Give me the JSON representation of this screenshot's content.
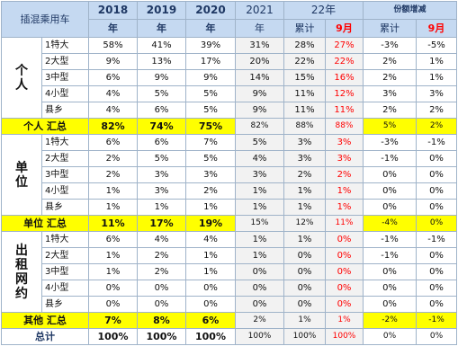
{
  "header": {
    "title": "插混乘用车",
    "y2018": "2018",
    "y2019": "2019",
    "y2020": "2020",
    "y2021": "2021",
    "y22": "22年",
    "share_change": "份额增减",
    "year_unit": "年",
    "cumulative": "累计",
    "month9": "9月"
  },
  "groups": [
    {
      "label": "个\n人",
      "rows": [
        {
          "label": "1特大",
          "v2018": "58%",
          "v2019": "41%",
          "v2020": "39%",
          "v2021": "31%",
          "cum22": "28%",
          "sep22": "27%",
          "dcum": "-3%",
          "dsep": "-5%"
        },
        {
          "label": "2大型",
          "v2018": "9%",
          "v2019": "13%",
          "v2020": "17%",
          "v2021": "20%",
          "cum22": "22%",
          "sep22": "22%",
          "dcum": "2%",
          "dsep": "1%"
        },
        {
          "label": "3中型",
          "v2018": "6%",
          "v2019": "9%",
          "v2020": "9%",
          "v2021": "14%",
          "cum22": "15%",
          "sep22": "16%",
          "dcum": "2%",
          "dsep": "1%"
        },
        {
          "label": "4小型",
          "v2018": "4%",
          "v2019": "5%",
          "v2020": "5%",
          "v2021": "9%",
          "cum22": "11%",
          "sep22": "12%",
          "dcum": "3%",
          "dsep": "3%"
        },
        {
          "label": "县乡",
          "v2018": "4%",
          "v2019": "6%",
          "v2020": "5%",
          "v2021": "9%",
          "cum22": "11%",
          "sep22": "11%",
          "dcum": "2%",
          "dsep": "2%"
        }
      ],
      "summary": {
        "label": "个人 汇总",
        "v2018": "82%",
        "v2019": "74%",
        "v2020": "75%",
        "v2021": "82%",
        "cum22": "88%",
        "sep22": "88%",
        "dcum": "5%",
        "dsep": "2%"
      }
    },
    {
      "label": "单\n位",
      "rows": [
        {
          "label": "1特大",
          "v2018": "6%",
          "v2019": "6%",
          "v2020": "7%",
          "v2021": "5%",
          "cum22": "3%",
          "sep22": "3%",
          "dcum": "-3%",
          "dsep": "-1%"
        },
        {
          "label": "2大型",
          "v2018": "2%",
          "v2019": "5%",
          "v2020": "5%",
          "v2021": "4%",
          "cum22": "3%",
          "sep22": "3%",
          "dcum": "-1%",
          "dsep": "0%"
        },
        {
          "label": "3中型",
          "v2018": "2%",
          "v2019": "3%",
          "v2020": "3%",
          "v2021": "3%",
          "cum22": "2%",
          "sep22": "2%",
          "dcum": "0%",
          "dsep": "0%"
        },
        {
          "label": "4小型",
          "v2018": "1%",
          "v2019": "3%",
          "v2020": "2%",
          "v2021": "1%",
          "cum22": "1%",
          "sep22": "1%",
          "dcum": "0%",
          "dsep": "0%"
        },
        {
          "label": "县乡",
          "v2018": "1%",
          "v2019": "1%",
          "v2020": "1%",
          "v2021": "1%",
          "cum22": "1%",
          "sep22": "1%",
          "dcum": "0%",
          "dsep": "0%"
        }
      ],
      "summary": {
        "label": "单位 汇总",
        "v2018": "11%",
        "v2019": "17%",
        "v2020": "19%",
        "v2021": "15%",
        "cum22": "12%",
        "sep22": "11%",
        "dcum": "-4%",
        "dsep": "0%"
      }
    },
    {
      "label": "出\n租\n网\n约",
      "rows": [
        {
          "label": "1特大",
          "v2018": "6%",
          "v2019": "4%",
          "v2020": "4%",
          "v2021": "1%",
          "cum22": "1%",
          "sep22": "0%",
          "dcum": "-1%",
          "dsep": "-1%"
        },
        {
          "label": "2大型",
          "v2018": "1%",
          "v2019": "2%",
          "v2020": "1%",
          "v2021": "1%",
          "cum22": "0%",
          "sep22": "0%",
          "dcum": "-1%",
          "dsep": "0%"
        },
        {
          "label": "3中型",
          "v2018": "1%",
          "v2019": "2%",
          "v2020": "1%",
          "v2021": "0%",
          "cum22": "0%",
          "sep22": "0%",
          "dcum": "0%",
          "dsep": "0%"
        },
        {
          "label": "4小型",
          "v2018": "0%",
          "v2019": "0%",
          "v2020": "0%",
          "v2021": "0%",
          "cum22": "0%",
          "sep22": "0%",
          "dcum": "0%",
          "dsep": "0%"
        },
        {
          "label": "县乡",
          "v2018": "0%",
          "v2019": "0%",
          "v2020": "0%",
          "v2021": "0%",
          "cum22": "0%",
          "sep22": "0%",
          "dcum": "0%",
          "dsep": "0%"
        }
      ],
      "summary": {
        "label": "其他 汇总",
        "v2018": "7%",
        "v2019": "8%",
        "v2020": "6%",
        "v2021": "2%",
        "cum22": "1%",
        "sep22": "1%",
        "dcum": "-2%",
        "dsep": "-1%"
      }
    }
  ],
  "total": {
    "label": "总计",
    "v2018": "100%",
    "v2019": "100%",
    "v2020": "100%",
    "v2021": "100%",
    "cum22": "100%",
    "sep22": "100%",
    "dcum": "0%",
    "dsep": "0%"
  },
  "colors": {
    "header_bg": "#c5d9f1",
    "summary_bg": "#ffff00",
    "highlight_red": "#ff0000",
    "gray_col": "#f2f2f2"
  }
}
